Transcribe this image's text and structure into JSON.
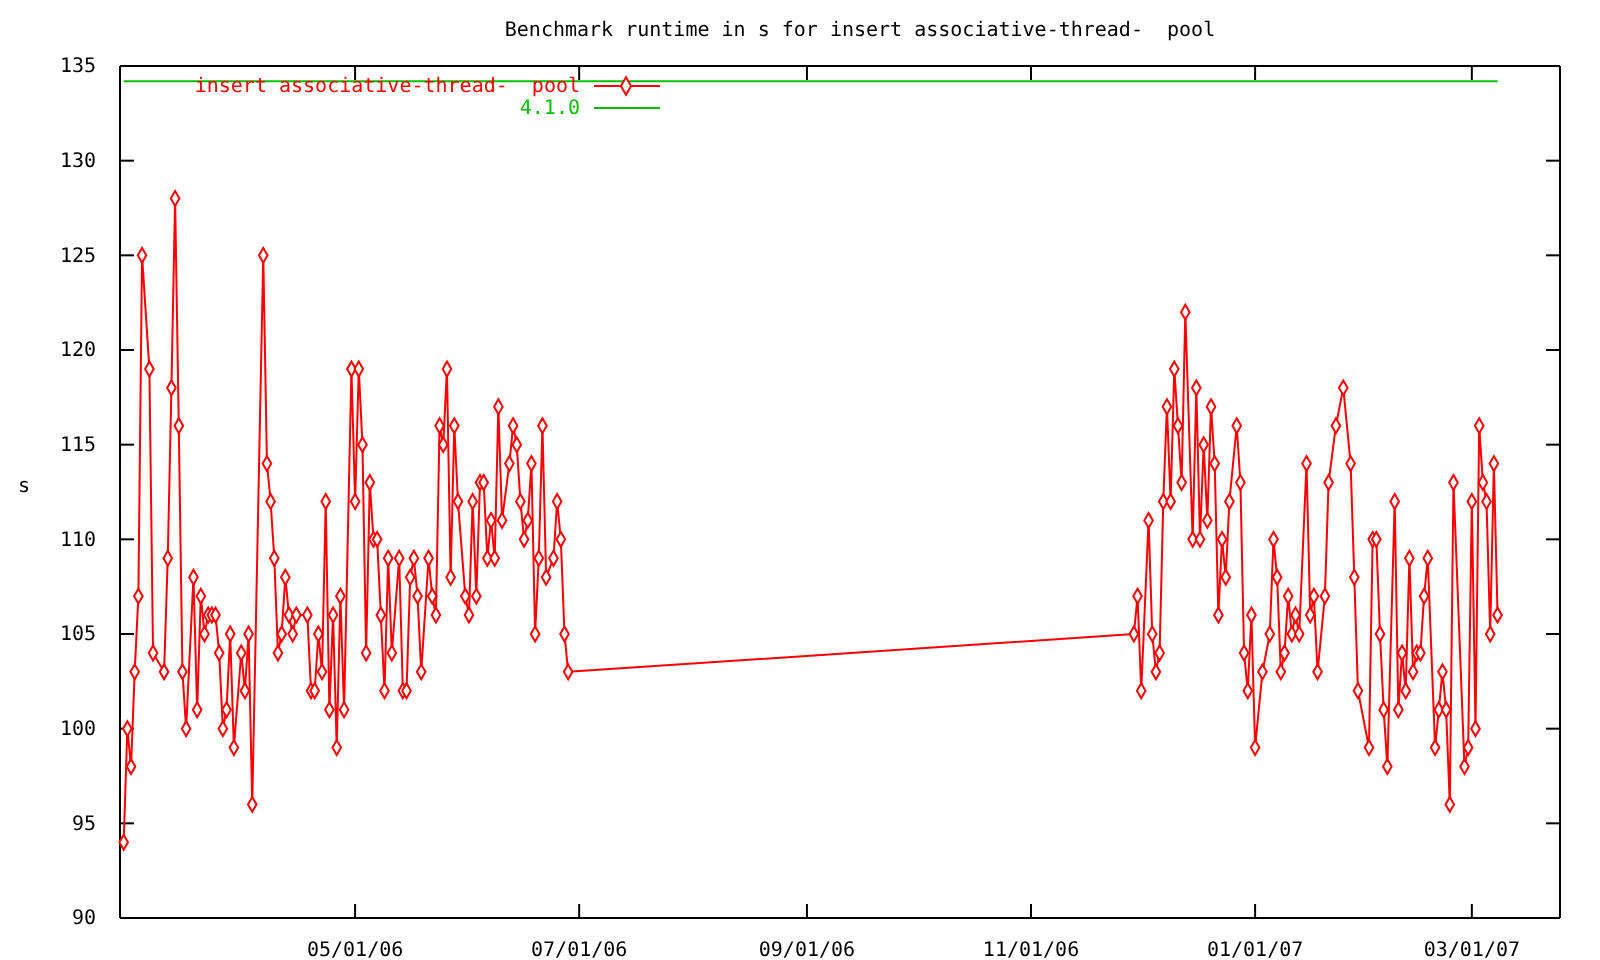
{
  "chart_data": {
    "type": "line",
    "title": "Benchmark runtime in s for insert associative-thread-  pool",
    "ylabel": "s",
    "xlim": [
      "2006-02-26",
      "2007-03-25"
    ],
    "xticks": [
      {
        "value": "2006-05-01",
        "label": "05/01/06"
      },
      {
        "value": "2006-07-01",
        "label": "07/01/06"
      },
      {
        "value": "2006-09-01",
        "label": "09/01/06"
      },
      {
        "value": "2006-11-01",
        "label": "11/01/06"
      },
      {
        "value": "2007-01-01",
        "label": "01/01/07"
      },
      {
        "value": "2007-03-01",
        "label": "03/01/07"
      }
    ],
    "ylim": [
      90,
      135
    ],
    "yticks": [
      90,
      95,
      100,
      105,
      110,
      115,
      120,
      125,
      130,
      135
    ],
    "grid": false,
    "legend": "top left",
    "series": [
      {
        "name": "insert associative-thread-  pool",
        "color": "#ff0000",
        "marker": "diamond",
        "line_style": "solid",
        "x": [
          "2006-02-27",
          "2006-02-28",
          "2006-03-01",
          "2006-03-02",
          "2006-03-03",
          "2006-03-04",
          "2006-03-06",
          "2006-03-07",
          "2006-03-10",
          "2006-03-11",
          "2006-03-12",
          "2006-03-13",
          "2006-03-14",
          "2006-03-15",
          "2006-03-16",
          "2006-03-18",
          "2006-03-19",
          "2006-03-20",
          "2006-03-21",
          "2006-03-22",
          "2006-03-23",
          "2006-03-24",
          "2006-03-25",
          "2006-03-26",
          "2006-03-27",
          "2006-03-28",
          "2006-03-29",
          "2006-03-31",
          "2006-04-01",
          "2006-04-02",
          "2006-04-03",
          "2006-04-06",
          "2006-04-07",
          "2006-04-08",
          "2006-04-09",
          "2006-04-10",
          "2006-04-11",
          "2006-04-12",
          "2006-04-13",
          "2006-04-14",
          "2006-04-15",
          "2006-04-18",
          "2006-04-19",
          "2006-04-20",
          "2006-04-21",
          "2006-04-22",
          "2006-04-23",
          "2006-04-24",
          "2006-04-25",
          "2006-04-26",
          "2006-04-27",
          "2006-04-28",
          "2006-04-30",
          "2006-05-01",
          "2006-05-02",
          "2006-05-03",
          "2006-05-04",
          "2006-05-05",
          "2006-05-06",
          "2006-05-07",
          "2006-05-08",
          "2006-05-09",
          "2006-05-10",
          "2006-05-11",
          "2006-05-13",
          "2006-05-14",
          "2006-05-15",
          "2006-05-16",
          "2006-05-17",
          "2006-05-18",
          "2006-05-19",
          "2006-05-21",
          "2006-05-22",
          "2006-05-23",
          "2006-05-24",
          "2006-05-25",
          "2006-05-26",
          "2006-05-27",
          "2006-05-28",
          "2006-05-29",
          "2006-05-31",
          "2006-06-01",
          "2006-06-02",
          "2006-06-03",
          "2006-06-04",
          "2006-06-05",
          "2006-06-06",
          "2006-06-07",
          "2006-06-08",
          "2006-06-09",
          "2006-06-10",
          "2006-06-12",
          "2006-06-13",
          "2006-06-14",
          "2006-06-15",
          "2006-06-16",
          "2006-06-17",
          "2006-06-18",
          "2006-06-19",
          "2006-06-20",
          "2006-06-21",
          "2006-06-22",
          "2006-06-24",
          "2006-06-25",
          "2006-06-26",
          "2006-06-27",
          "2006-06-28",
          "2006-11-29",
          "2006-11-30",
          "2006-12-01",
          "2006-12-03",
          "2006-12-04",
          "2006-12-05",
          "2006-12-06",
          "2006-12-07",
          "2006-12-08",
          "2006-12-09",
          "2006-12-10",
          "2006-12-11",
          "2006-12-12",
          "2006-12-13",
          "2006-12-15",
          "2006-12-16",
          "2006-12-17",
          "2006-12-18",
          "2006-12-19",
          "2006-12-20",
          "2006-12-21",
          "2006-12-22",
          "2006-12-23",
          "2006-12-24",
          "2006-12-25",
          "2006-12-27",
          "2006-12-28",
          "2006-12-29",
          "2006-12-30",
          "2006-12-31",
          "2007-01-01",
          "2007-01-03",
          "2007-01-05",
          "2007-01-06",
          "2007-01-07",
          "2007-01-08",
          "2007-01-09",
          "2007-01-10",
          "2007-01-11",
          "2007-01-12",
          "2007-01-13",
          "2007-01-15",
          "2007-01-16",
          "2007-01-17",
          "2007-01-18",
          "2007-01-20",
          "2007-01-21",
          "2007-01-23",
          "2007-01-25",
          "2007-01-27",
          "2007-01-28",
          "2007-01-29",
          "2007-02-01",
          "2007-02-02",
          "2007-02-03",
          "2007-02-04",
          "2007-02-05",
          "2007-02-06",
          "2007-02-08",
          "2007-02-09",
          "2007-02-10",
          "2007-02-11",
          "2007-02-12",
          "2007-02-13",
          "2007-02-14",
          "2007-02-15",
          "2007-02-16",
          "2007-02-17",
          "2007-02-19",
          "2007-02-20",
          "2007-02-21",
          "2007-02-22",
          "2007-02-23",
          "2007-02-24",
          "2007-02-27",
          "2007-02-28",
          "2007-03-01",
          "2007-03-02",
          "2007-03-03",
          "2007-03-04",
          "2007-03-05",
          "2007-03-06",
          "2007-03-07",
          "2007-03-08"
        ],
        "values": [
          94,
          100,
          98,
          103,
          107,
          125,
          119,
          104,
          103,
          109,
          118,
          128,
          116,
          103,
          100,
          108,
          101,
          107,
          105,
          106,
          106,
          106,
          104,
          100,
          101,
          105,
          99,
          104,
          102,
          105,
          96,
          125,
          114,
          112,
          109,
          104,
          105,
          108,
          106,
          105,
          106,
          106,
          102,
          102,
          105,
          103,
          112,
          101,
          106,
          99,
          107,
          101,
          119,
          112,
          119,
          115,
          104,
          113,
          110,
          110,
          106,
          102,
          109,
          104,
          109,
          102,
          102,
          108,
          109,
          107,
          103,
          109,
          107,
          106,
          116,
          115,
          119,
          108,
          116,
          112,
          107,
          106,
          112,
          107,
          113,
          113,
          109,
          111,
          109,
          117,
          111,
          114,
          116,
          115,
          112,
          110,
          111,
          114,
          105,
          109,
          116,
          108,
          109,
          112,
          110,
          105,
          103,
          105,
          107,
          102,
          111,
          105,
          103,
          104,
          112,
          117,
          112,
          119,
          116,
          113,
          122,
          110,
          118,
          110,
          115,
          111,
          117,
          114,
          106,
          110,
          108,
          112,
          116,
          113,
          104,
          102,
          106,
          99,
          103,
          105,
          110,
          108,
          103,
          104,
          107,
          105,
          106,
          105,
          114,
          106,
          107,
          103,
          107,
          113,
          116,
          118,
          114,
          108,
          102,
          99,
          110,
          110,
          105,
          101,
          98,
          112,
          101,
          104,
          102,
          109,
          103,
          104,
          104,
          107,
          109,
          99,
          101,
          103,
          101,
          96,
          113,
          98,
          99,
          112,
          100,
          116,
          113,
          112,
          105,
          114,
          106
        ]
      },
      {
        "name": "4.1.0",
        "color": "#00c000",
        "marker": "none",
        "line_style": "solid",
        "x": [
          "2006-02-27",
          "2007-03-08"
        ],
        "values": [
          134.2,
          134.2
        ]
      }
    ]
  }
}
